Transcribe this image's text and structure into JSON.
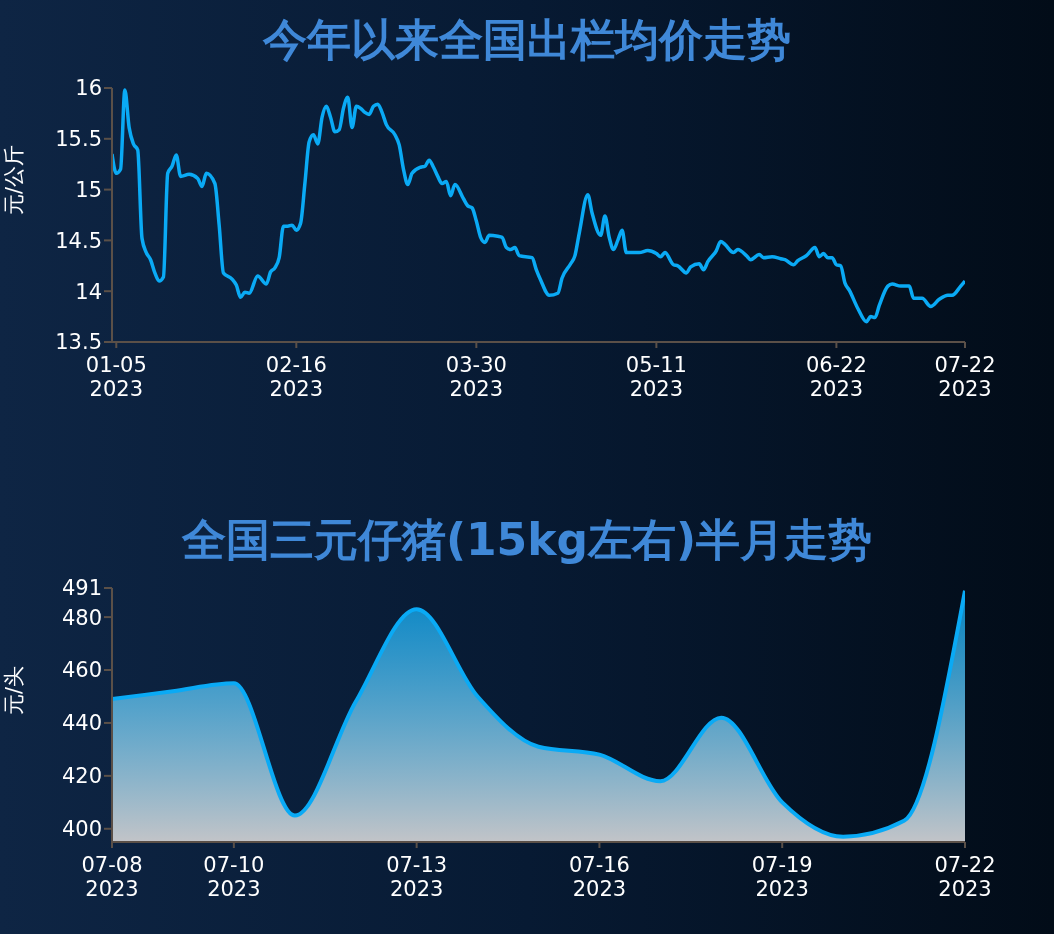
{
  "chart_data": [
    {
      "type": "line",
      "title": "今年以来全国出栏均价走势",
      "ylabel": "元/公斤",
      "xlim": [
        "2023-01-04",
        "2023-07-22"
      ],
      "xticks": [
        {
          "value": "2023-01-05",
          "label": "01-05\n2023"
        },
        {
          "value": "2023-02-16",
          "label": "02-16\n2023"
        },
        {
          "value": "2023-03-30",
          "label": "03-30\n2023"
        },
        {
          "value": "2023-05-11",
          "label": "05-11\n2023"
        },
        {
          "value": "2023-06-22",
          "label": "06-22\n2023"
        },
        {
          "value": "2023-07-22",
          "label": "07-22\n2023"
        }
      ],
      "ylim": [
        13.5,
        16
      ],
      "yticks": [
        13.5,
        14,
        14.5,
        15,
        15.5,
        16
      ],
      "grid": false,
      "legend": false,
      "x": [
        "2023-01-04",
        "2023-01-05",
        "2023-01-06",
        "2023-01-07",
        "2023-01-08",
        "2023-01-09",
        "2023-01-10",
        "2023-01-11",
        "2023-01-12",
        "2023-01-13",
        "2023-01-14",
        "2023-01-15",
        "2023-01-16",
        "2023-01-17",
        "2023-01-18",
        "2023-01-19",
        "2023-01-20",
        "2023-01-22",
        "2023-01-24",
        "2023-01-25",
        "2023-01-26",
        "2023-01-28",
        "2023-01-29",
        "2023-01-30",
        "2023-02-01",
        "2023-02-02",
        "2023-02-03",
        "2023-02-04",
        "2023-02-05",
        "2023-02-07",
        "2023-02-09",
        "2023-02-10",
        "2023-02-11",
        "2023-02-12",
        "2023-02-13",
        "2023-02-14",
        "2023-02-15",
        "2023-02-16",
        "2023-02-17",
        "2023-02-18",
        "2023-02-19",
        "2023-02-20",
        "2023-02-21",
        "2023-02-22",
        "2023-02-23",
        "2023-02-24",
        "2023-02-25",
        "2023-02-26",
        "2023-02-27",
        "2023-02-28",
        "2023-03-01",
        "2023-03-02",
        "2023-03-03",
        "2023-03-04",
        "2023-03-05",
        "2023-03-06",
        "2023-03-07",
        "2023-03-08",
        "2023-03-09",
        "2023-03-11",
        "2023-03-12",
        "2023-03-13",
        "2023-03-14",
        "2023-03-15",
        "2023-03-17",
        "2023-03-18",
        "2023-03-19",
        "2023-03-20",
        "2023-03-21",
        "2023-03-22",
        "2023-03-23",
        "2023-03-24",
        "2023-03-25",
        "2023-03-27",
        "2023-03-28",
        "2023-03-29",
        "2023-03-30",
        "2023-03-31",
        "2023-04-01",
        "2023-04-02",
        "2023-04-04",
        "2023-04-05",
        "2023-04-06",
        "2023-04-07",
        "2023-04-08",
        "2023-04-09",
        "2023-04-12",
        "2023-04-13",
        "2023-04-14",
        "2023-04-16",
        "2023-04-18",
        "2023-04-19",
        "2023-04-21",
        "2023-04-22",
        "2023-04-23",
        "2023-04-25",
        "2023-04-26",
        "2023-04-28",
        "2023-04-29",
        "2023-04-30",
        "2023-05-01",
        "2023-05-02",
        "2023-05-03",
        "2023-05-04",
        "2023-05-07",
        "2023-05-09",
        "2023-05-11",
        "2023-05-12",
        "2023-05-13",
        "2023-05-15",
        "2023-05-16",
        "2023-05-18",
        "2023-05-19",
        "2023-05-21",
        "2023-05-22",
        "2023-05-23",
        "2023-05-25",
        "2023-05-26",
        "2023-05-27",
        "2023-05-29",
        "2023-05-30",
        "2023-06-01",
        "2023-06-02",
        "2023-06-04",
        "2023-06-05",
        "2023-06-07",
        "2023-06-09",
        "2023-06-10",
        "2023-06-12",
        "2023-06-13",
        "2023-06-15",
        "2023-06-17",
        "2023-06-18",
        "2023-06-19",
        "2023-06-20",
        "2023-06-21",
        "2023-06-22",
        "2023-06-23",
        "2023-06-24",
        "2023-06-25",
        "2023-06-27",
        "2023-06-29",
        "2023-06-30",
        "2023-07-01",
        "2023-07-02",
        "2023-07-04",
        "2023-07-05",
        "2023-07-07",
        "2023-07-09",
        "2023-07-10",
        "2023-07-12",
        "2023-07-14",
        "2023-07-16",
        "2023-07-18",
        "2023-07-19",
        "2023-07-21",
        "2023-07-22"
      ],
      "series": [
        {
          "color": "#0aaaf5",
          "values": [
            15.35,
            15.16,
            15.2,
            15.98,
            15.61,
            15.45,
            15.39,
            14.52,
            14.38,
            14.31,
            14.18,
            14.1,
            14.14,
            15.16,
            15.23,
            15.34,
            15.13,
            15.15,
            15.11,
            15.03,
            15.16,
            15.06,
            14.65,
            14.18,
            14.12,
            14.06,
            13.94,
            13.99,
            13.98,
            14.15,
            14.07,
            14.19,
            14.23,
            14.33,
            14.64,
            14.64,
            14.65,
            14.6,
            14.67,
            15.06,
            15.47,
            15.54,
            15.45,
            15.71,
            15.82,
            15.71,
            15.57,
            15.59,
            15.8,
            15.91,
            15.61,
            15.82,
            15.8,
            15.76,
            15.74,
            15.82,
            15.84,
            15.76,
            15.64,
            15.54,
            15.44,
            15.2,
            15.05,
            15.16,
            15.22,
            15.23,
            15.29,
            15.22,
            15.13,
            15.06,
            15.08,
            14.94,
            15.05,
            14.91,
            14.84,
            14.82,
            14.69,
            14.53,
            14.48,
            14.55,
            14.54,
            14.53,
            14.43,
            14.41,
            14.43,
            14.35,
            14.33,
            14.21,
            14.11,
            13.96,
            13.98,
            14.13,
            14.27,
            14.35,
            14.57,
            14.95,
            14.77,
            14.55,
            14.74,
            14.53,
            14.41,
            14.5,
            14.6,
            14.38,
            14.38,
            14.4,
            14.37,
            14.34,
            14.38,
            14.26,
            14.25,
            14.18,
            14.24,
            14.27,
            14.21,
            14.29,
            14.4,
            14.49,
            14.46,
            14.38,
            14.41,
            14.35,
            14.31,
            14.36,
            14.33,
            14.34,
            14.32,
            14.31,
            14.26,
            14.3,
            14.35,
            14.43,
            14.34,
            14.37,
            14.33,
            14.33,
            14.26,
            14.25,
            14.08,
            14.01,
            13.83,
            13.7,
            13.75,
            13.74,
            13.86,
            14.05,
            14.07,
            14.05,
            14.05,
            13.93,
            13.93,
            13.85,
            13.92,
            13.96,
            13.96,
            14.05,
            14.1
          ]
        }
      ]
    },
    {
      "type": "area",
      "title": "全国三元仔猪(15kg左右)半月走势",
      "ylabel": "元/头",
      "xlim": [
        "2023-07-08",
        "2023-07-22"
      ],
      "xticks": [
        {
          "value": "2023-07-08",
          "label": "07-08\n2023"
        },
        {
          "value": "2023-07-10",
          "label": "07-10\n2023"
        },
        {
          "value": "2023-07-13",
          "label": "07-13\n2023"
        },
        {
          "value": "2023-07-16",
          "label": "07-16\n2023"
        },
        {
          "value": "2023-07-19",
          "label": "07-19\n2023"
        },
        {
          "value": "2023-07-22",
          "label": "07-22\n2023"
        }
      ],
      "ylim": [
        395,
        491
      ],
      "yticks": [
        400,
        420,
        440,
        460,
        480,
        491
      ],
      "grid": false,
      "legend": false,
      "x": [
        "2023-07-08",
        "2023-07-09",
        "2023-07-10",
        "2023-07-11",
        "2023-07-12",
        "2023-07-13",
        "2023-07-14",
        "2023-07-15",
        "2023-07-16",
        "2023-07-17",
        "2023-07-18",
        "2023-07-19",
        "2023-07-20",
        "2023-07-21",
        "2023-07-22"
      ],
      "series": [
        {
          "color": "#0aaaf5",
          "values": [
            449,
            452,
            455,
            405,
            448,
            483,
            450,
            431,
            428,
            418,
            442,
            410,
            397,
            403,
            490
          ]
        }
      ]
    }
  ]
}
